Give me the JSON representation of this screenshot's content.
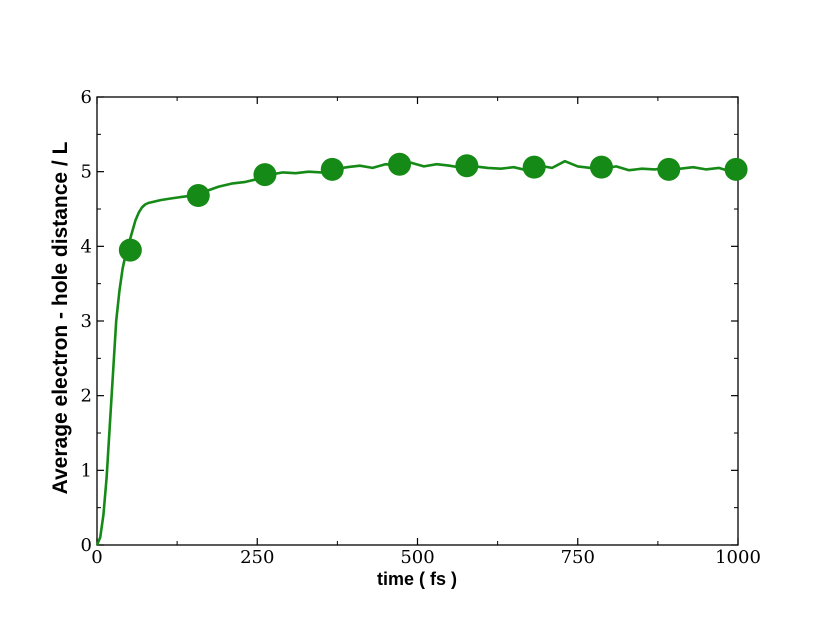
{
  "chart_data": {
    "type": "line",
    "title": "",
    "xlabel": "time ( fs )",
    "ylabel": "Average electron - hole distance / L",
    "xlim": [
      0,
      1000
    ],
    "ylim": [
      0,
      6
    ],
    "x_ticks": [
      0,
      250,
      500,
      750,
      1000
    ],
    "y_ticks": [
      0,
      1,
      2,
      3,
      4,
      5,
      6
    ],
    "grid": false,
    "legend": "none",
    "color": "#168a16",
    "series": [
      {
        "kind": "line",
        "x": [
          0,
          5,
          10,
          15,
          20,
          25,
          30,
          35,
          40,
          45,
          50,
          55,
          60,
          65,
          70,
          75,
          80,
          90,
          100,
          115,
          130,
          150,
          170,
          190,
          210,
          230,
          250,
          270,
          290,
          310,
          330,
          350,
          370,
          390,
          410,
          430,
          450,
          470,
          490,
          510,
          530,
          550,
          570,
          590,
          610,
          630,
          650,
          670,
          690,
          710,
          730,
          750,
          770,
          790,
          810,
          830,
          850,
          870,
          890,
          910,
          930,
          950,
          970,
          990,
          1000
        ],
        "y": [
          0,
          0.1,
          0.4,
          0.9,
          1.6,
          2.3,
          3.0,
          3.4,
          3.7,
          3.9,
          4.05,
          4.2,
          4.35,
          4.45,
          4.52,
          4.56,
          4.58,
          4.6,
          4.62,
          4.64,
          4.66,
          4.68,
          4.74,
          4.8,
          4.84,
          4.86,
          4.9,
          4.96,
          4.99,
          4.98,
          5.0,
          4.99,
          5.03,
          5.06,
          5.08,
          5.05,
          5.1,
          5.08,
          5.12,
          5.07,
          5.1,
          5.08,
          5.05,
          5.07,
          5.05,
          5.04,
          5.06,
          5.02,
          5.08,
          5.05,
          5.14,
          5.07,
          5.05,
          5.04,
          5.07,
          5.02,
          5.04,
          5.03,
          5.05,
          5.04,
          5.06,
          5.03,
          5.05,
          5.0,
          5.02
        ]
      },
      {
        "kind": "scatter",
        "x": [
          52,
          158,
          262,
          367,
          472,
          577,
          682,
          787,
          892,
          997
        ],
        "y": [
          3.95,
          4.68,
          4.96,
          5.03,
          5.1,
          5.08,
          5.06,
          5.06,
          5.03,
          5.03
        ]
      }
    ]
  }
}
